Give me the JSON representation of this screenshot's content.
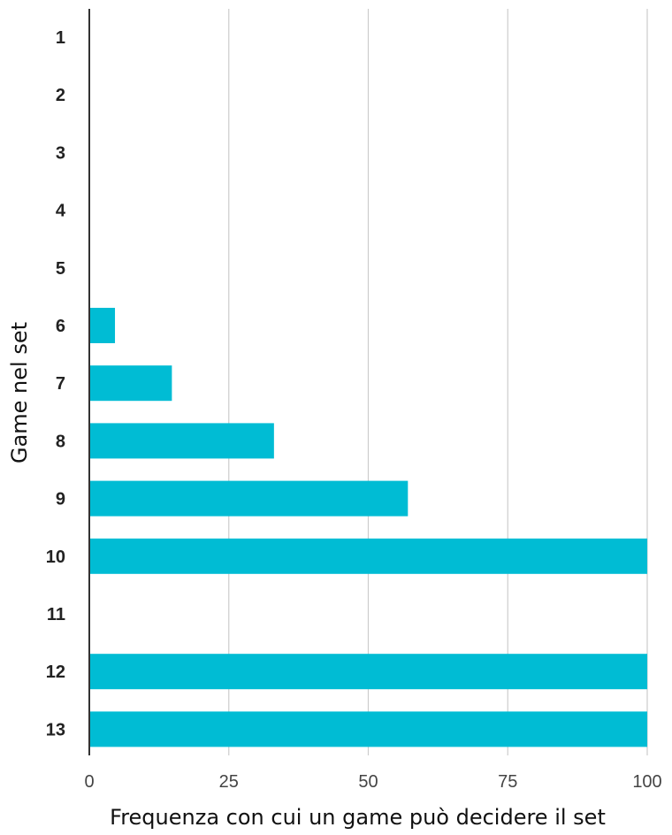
{
  "chart_data": {
    "type": "bar",
    "orientation": "horizontal",
    "categories": [
      "1",
      "2",
      "3",
      "4",
      "5",
      "6",
      "7",
      "8",
      "9",
      "10",
      "11",
      "12",
      "13"
    ],
    "values": [
      0,
      0,
      0,
      0,
      0,
      4.6,
      14.8,
      33.1,
      57.1,
      100,
      0,
      100,
      100
    ],
    "xlabel": "Frequenza con cui un game può decidere il set",
    "ylabel": "Game nel set",
    "xlim": [
      0,
      100
    ],
    "xticks": [
      "0",
      "25",
      "50",
      "75",
      "100"
    ],
    "xtick_values": [
      0,
      25,
      50,
      75,
      100
    ],
    "grid": true,
    "legend": "none",
    "colors": {
      "bar": "#00bcd4",
      "grid": "#cccccc",
      "axis": "#333333"
    }
  }
}
